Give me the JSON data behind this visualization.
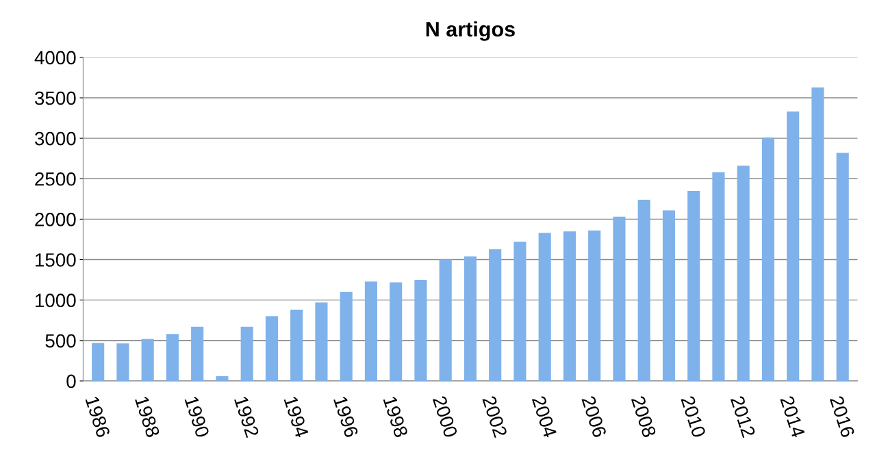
{
  "chart_data": {
    "type": "bar",
    "title": "N artigos",
    "categories": [
      "1986",
      null,
      "1988",
      null,
      "1990",
      null,
      "1992",
      null,
      "1994",
      null,
      "1996",
      null,
      "1998",
      null,
      "2000",
      null,
      "2002",
      null,
      "2004",
      null,
      "2006",
      null,
      "2008",
      null,
      "2010",
      null,
      "2012",
      null,
      "2014",
      null,
      "2016"
    ],
    "values": [
      470,
      465,
      520,
      580,
      670,
      60,
      670,
      800,
      880,
      970,
      1100,
      1230,
      1220,
      1250,
      1500,
      1540,
      1630,
      1720,
      1830,
      1850,
      1860,
      2030,
      2240,
      2110,
      2350,
      2580,
      2660,
      3010,
      3330,
      3630,
      2820
    ],
    "color": "#7fb2ea",
    "ylim": [
      0,
      4000
    ],
    "yticks": [
      0,
      500,
      1000,
      1500,
      2000,
      2500,
      3000,
      3500,
      4000
    ],
    "grid": "y",
    "legend": false
  }
}
